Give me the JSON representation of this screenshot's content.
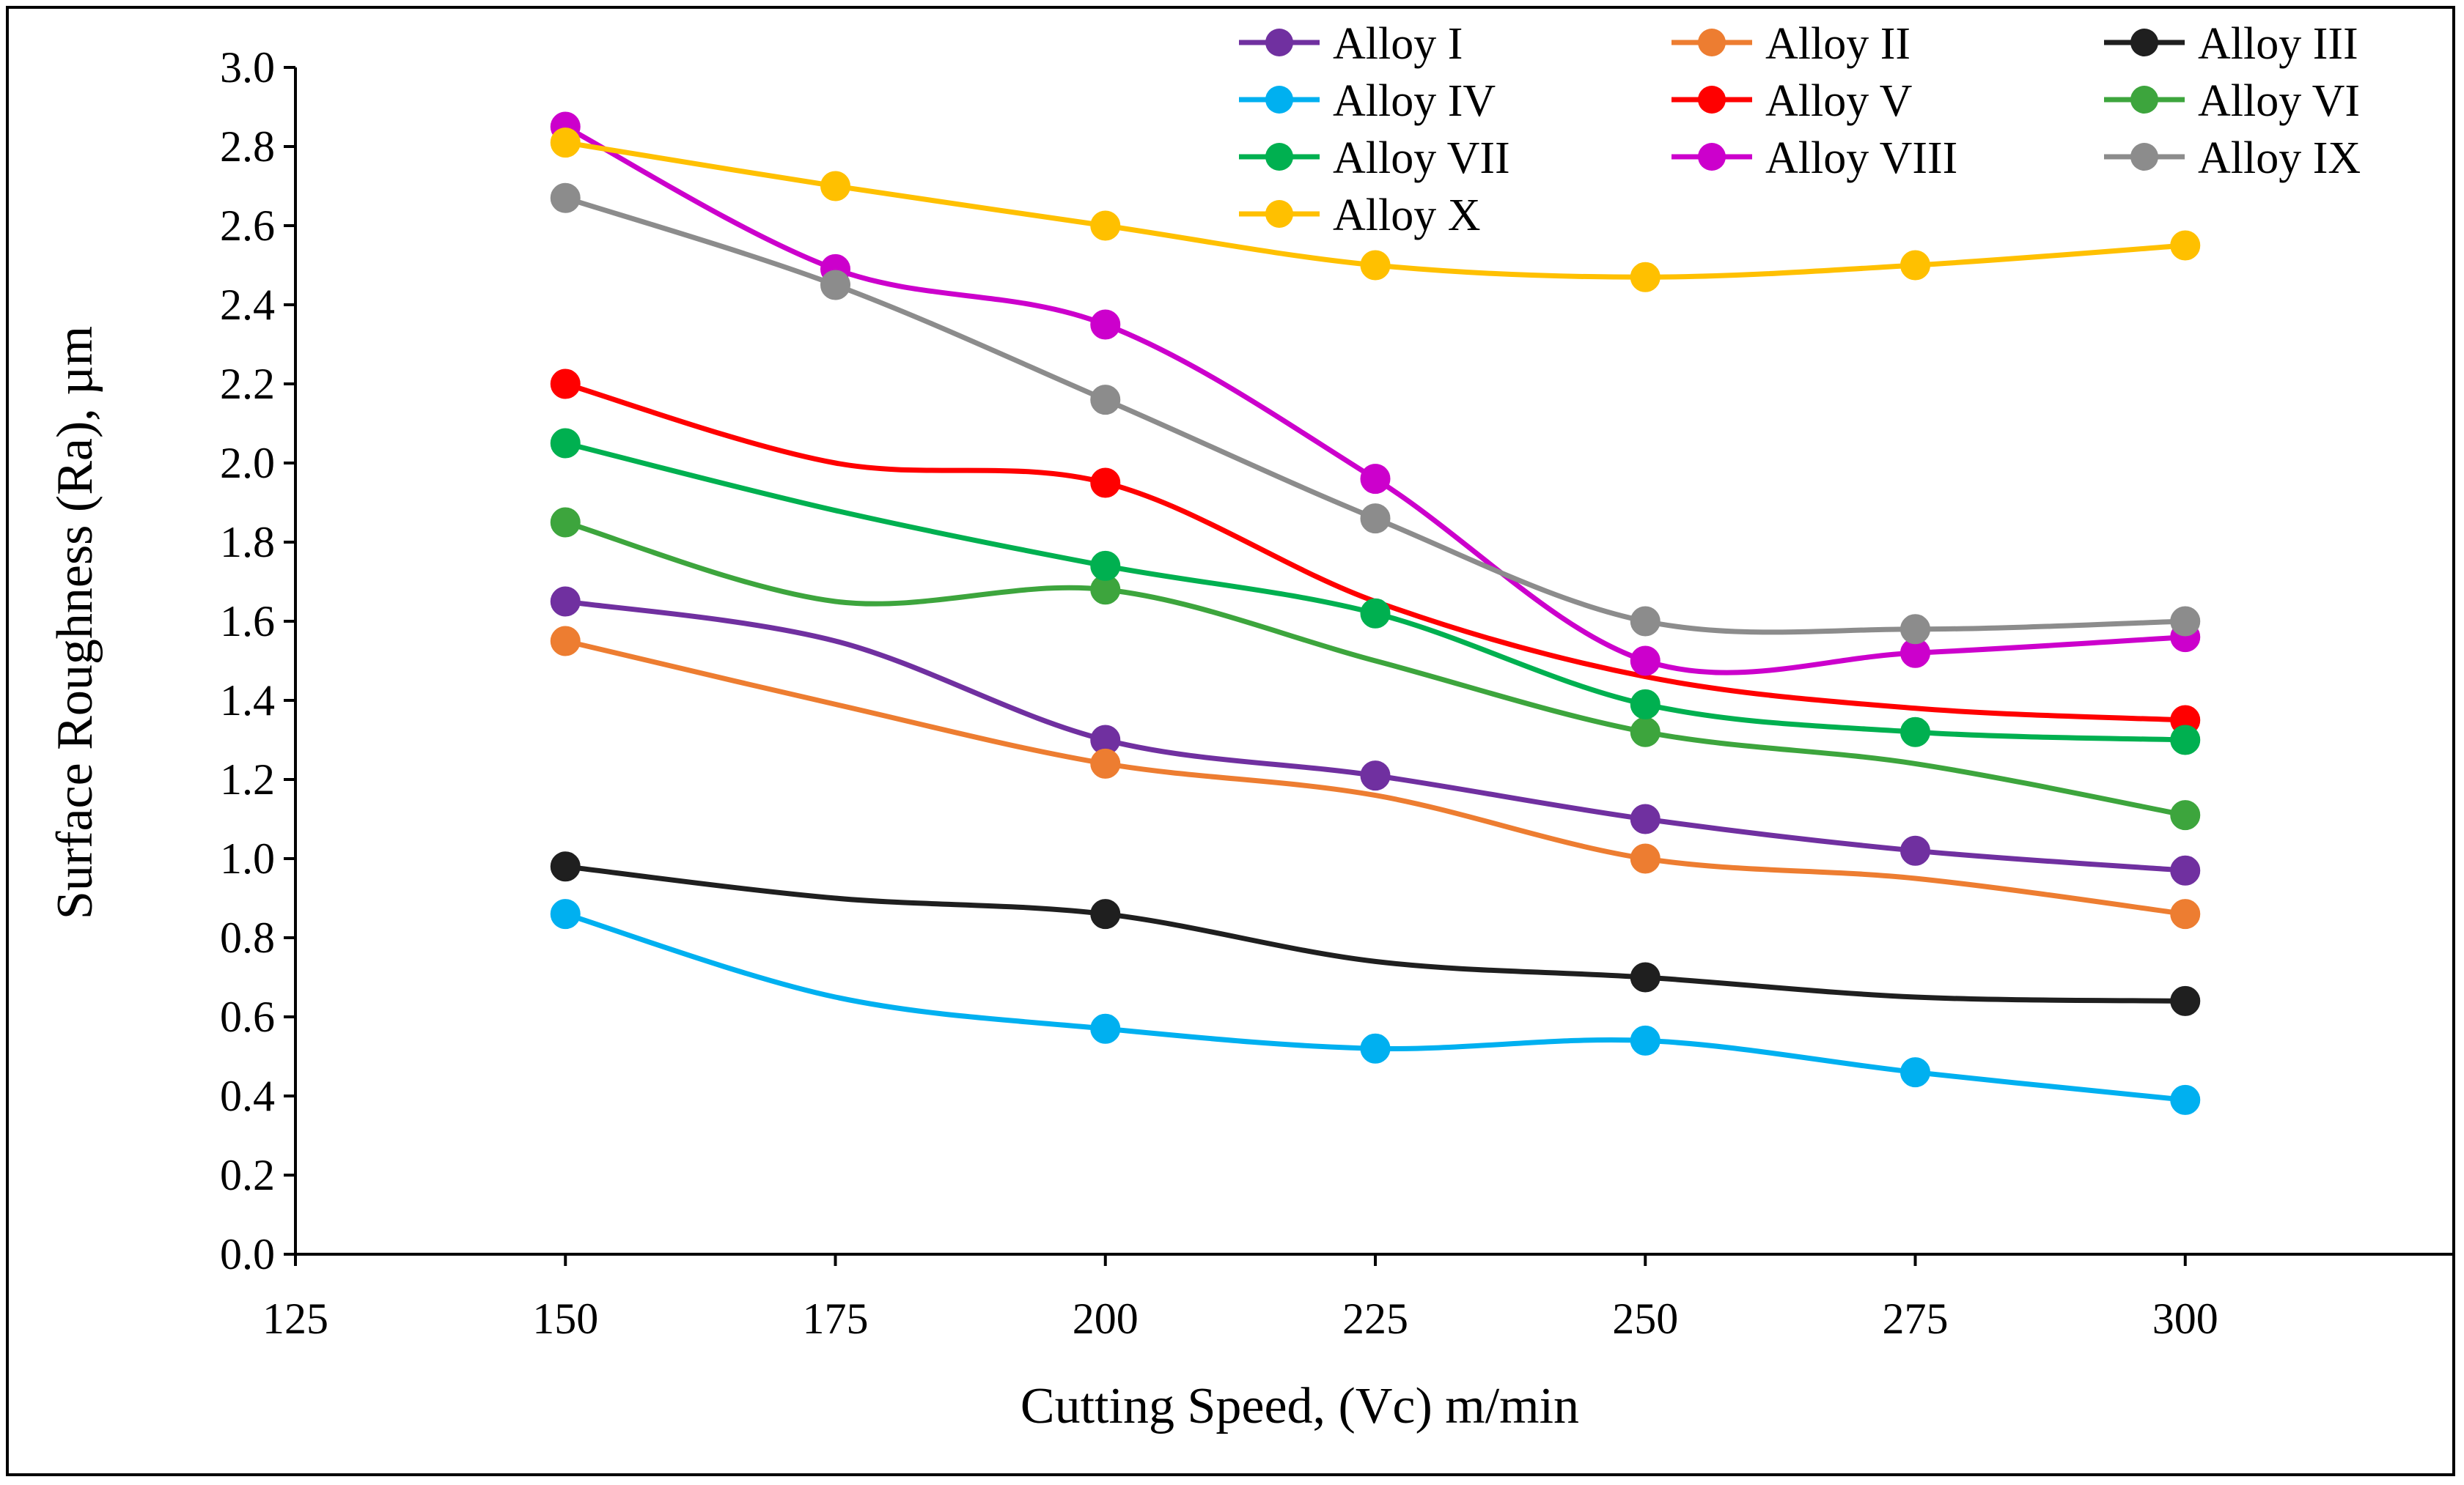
{
  "chart_data": {
    "type": "line",
    "title": "",
    "xlabel": "Cutting Speed, (Vc) m/min",
    "ylabel": "Surface Roughness (Ra), µm",
    "xlim": [
      125,
      325
    ],
    "ylim": [
      0,
      3.0
    ],
    "x_ticks": [
      "125",
      "150",
      "175",
      "200",
      "225",
      "250",
      "275",
      "300"
    ],
    "y_ticks": [
      "0.0",
      "0.2",
      "0.4",
      "0.6",
      "0.8",
      "1.0",
      "1.2",
      "1.4",
      "1.6",
      "1.8",
      "2.0",
      "2.2",
      "2.4",
      "2.6",
      "2.8",
      "3.0"
    ],
    "grid": false,
    "legend_position": "top-right",
    "series": [
      {
        "name": "Alloy I",
        "color": "#7030A0",
        "x": [
          150,
          200,
          225,
          250,
          275,
          300
        ],
        "values": [
          1.65,
          1.3,
          1.21,
          1.1,
          1.02,
          0.97
        ],
        "through": [
          [
            175,
            1.55
          ]
        ]
      },
      {
        "name": "Alloy II",
        "color": "#ED7D31",
        "x": [
          150,
          200,
          250,
          300
        ],
        "values": [
          1.55,
          1.24,
          1.0,
          0.86
        ],
        "through": [
          [
            175,
            1.39
          ],
          [
            225,
            1.16
          ],
          [
            275,
            0.95
          ]
        ]
      },
      {
        "name": "Alloy III",
        "color": "#1F1F1F",
        "x": [
          150,
          200,
          250,
          300
        ],
        "values": [
          0.98,
          0.86,
          0.7,
          0.64
        ],
        "through": [
          [
            175,
            0.9
          ],
          [
            225,
            0.74
          ],
          [
            275,
            0.65
          ]
        ]
      },
      {
        "name": "Alloy IV",
        "color": "#00B0F0",
        "x": [
          150,
          200,
          225,
          250,
          275,
          300
        ],
        "values": [
          0.86,
          0.57,
          0.52,
          0.54,
          0.46,
          0.39
        ],
        "through": [
          [
            175,
            0.65
          ]
        ]
      },
      {
        "name": "Alloy V",
        "color": "#FF0000",
        "x": [
          150,
          200,
          300
        ],
        "values": [
          2.2,
          1.95,
          1.35
        ],
        "through": [
          [
            175,
            2.0
          ],
          [
            225,
            1.65
          ],
          [
            250,
            1.46
          ],
          [
            275,
            1.38
          ]
        ]
      },
      {
        "name": "Alloy VI",
        "color": "#3DA53D",
        "x": [
          150,
          200,
          250,
          300
        ],
        "values": [
          1.85,
          1.68,
          1.32,
          1.11
        ],
        "through": [
          [
            175,
            1.65
          ],
          [
            225,
            1.5
          ],
          [
            275,
            1.24
          ]
        ]
      },
      {
        "name": "Alloy VII",
        "color": "#00B050",
        "x": [
          150,
          200,
          225,
          250,
          275,
          300
        ],
        "values": [
          2.05,
          1.74,
          1.62,
          1.39,
          1.32,
          1.3
        ],
        "through": [
          [
            175,
            1.88
          ]
        ]
      },
      {
        "name": "Alloy VIII",
        "color": "#CC00CC",
        "x": [
          150,
          175,
          200,
          225,
          250,
          275,
          300
        ],
        "values": [
          2.85,
          2.49,
          2.35,
          1.96,
          1.5,
          1.52,
          1.56
        ],
        "through": []
      },
      {
        "name": "Alloy IX",
        "color": "#8C8C8C",
        "x": [
          150,
          175,
          200,
          225,
          250,
          275,
          300
        ],
        "values": [
          2.67,
          2.45,
          2.16,
          1.86,
          1.6,
          1.58,
          1.6
        ],
        "through": []
      },
      {
        "name": "Alloy X",
        "color": "#FFC000",
        "x": [
          150,
          175,
          200,
          225,
          250,
          275,
          300
        ],
        "values": [
          2.81,
          2.7,
          2.6,
          2.5,
          2.47,
          2.5,
          2.55
        ],
        "through": []
      }
    ]
  }
}
